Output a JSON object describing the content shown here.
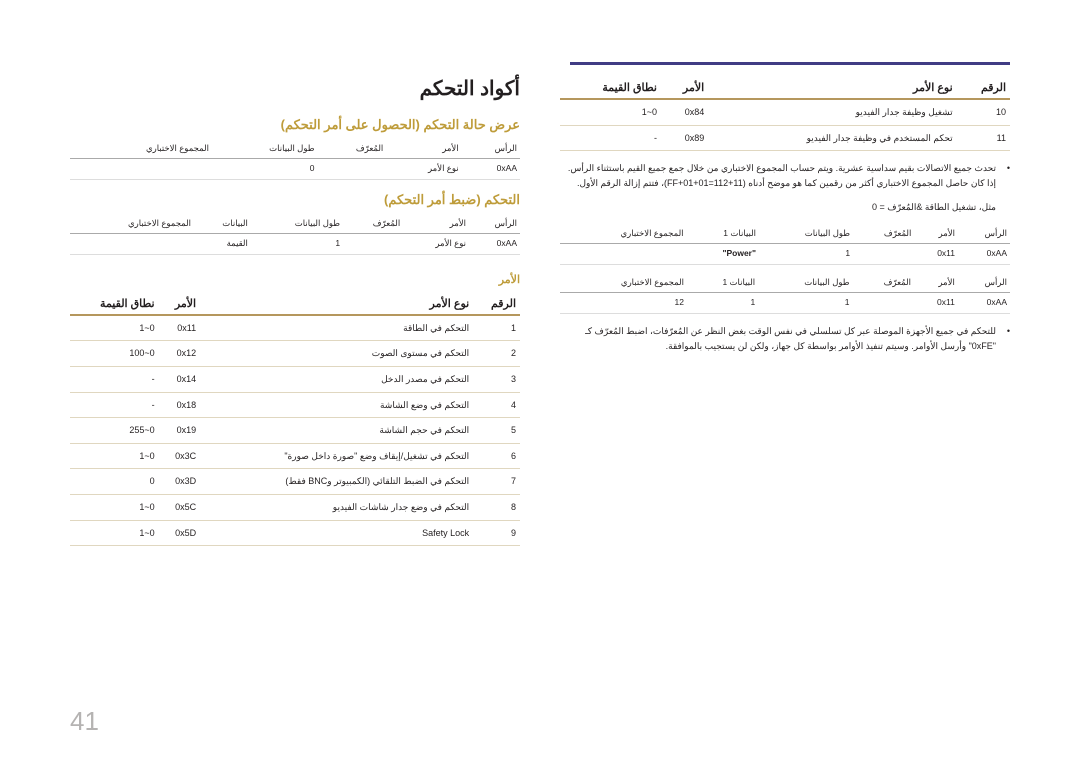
{
  "page_number": "41",
  "title": "أكواد التحكم",
  "h_viewstate": "عرض حالة التحكم (الحصول على أمر التحكم)",
  "viewstate_headers": [
    "الرأس",
    "الأمر",
    "المُعرّف",
    "طول البيانات",
    "المجموع الاختباري"
  ],
  "viewstate_row": [
    "0xAA",
    "نوع الأمر",
    "",
    "0",
    ""
  ],
  "h_setcontrol": "التحكم (ضبط أمر التحكم)",
  "setcontrol_headers": [
    "الرأس",
    "الأمر",
    "المُعرّف",
    "طول البيانات",
    "البيانات",
    "المجموع الاختباري"
  ],
  "setcontrol_row": [
    "0xAA",
    "نوع الأمر",
    "",
    "1",
    "القيمة",
    ""
  ],
  "h_command": "الأمر",
  "cmd_headers": [
    "الرقم",
    "نوع الأمر",
    "الأمر",
    "نطاق القيمة"
  ],
  "cmd_rows": [
    [
      "1",
      "التحكم في الطاقة",
      "0x11",
      "1~0"
    ],
    [
      "2",
      "التحكم في مستوى الصوت",
      "0x12",
      "100~0"
    ],
    [
      "3",
      "التحكم في مصدر الدخل",
      "0x14",
      "-"
    ],
    [
      "4",
      "التحكم في وضع الشاشة",
      "0x18",
      "-"
    ],
    [
      "5",
      "التحكم في حجم الشاشة",
      "0x19",
      "255~0"
    ],
    [
      "6",
      "التحكم في تشغيل/إيقاف وضع \"صورة داخل صورة\"",
      "0x3C",
      "1~0"
    ],
    [
      "7",
      "التحكم في الضبط التلقائي (الكمبيوتر وBNC فقط)",
      "0x3D",
      "0"
    ],
    [
      "8",
      "التحكم في وضع جدار شاشات الفيديو",
      "0x5C",
      "1~0"
    ],
    [
      "9",
      "Safety Lock",
      "0x5D",
      "1~0"
    ]
  ],
  "left_headers": [
    "الرقم",
    "نوع الأمر",
    "الأمر",
    "نطاق القيمة"
  ],
  "left_rows": [
    [
      "10",
      "تشغيل وظيفة جدار الفيديو",
      "0x84",
      "1~0"
    ],
    [
      "11",
      "تحكم المستخدم في وظيفة جدار الفيديو",
      "0x89",
      "-"
    ]
  ],
  "note1": "تحدث جميع الاتصالات بقيم سداسية عشرية. ويتم حساب المجموع الاختباري من خلال جمع جميع القيم باستثناء الرأس. إذا كان حاصل المجموع الاختباري أكثر من رقمين كما هو موضح أدناه (11+FF+01+01=112)، فتتم إزالة الرقم الأول.",
  "note1_ex": "مثل، تشغيل الطاقة &المُعرّف = 0",
  "ex1_headers": [
    "الرأس",
    "الأمر",
    "المُعرّف",
    "طول البيانات",
    "البيانات 1",
    "المجموع الاختباري"
  ],
  "ex1_row": [
    "0xAA",
    "0x11",
    "",
    "1",
    "\"Power\"",
    ""
  ],
  "ex2_row": [
    "0xAA",
    "0x11",
    "",
    "1",
    "1",
    "12"
  ],
  "note2": "للتحكم في جميع الأجهزة الموصلة عبر كل تسلسلي في نفس الوقت بغض النظر عن المُعرّفات، اضبط المُعرّف كـ \"0xFE\" وأرسل الأوامر. وسيتم تنفيذ الأوامر بواسطة كل جهاز، ولكن لن يستجيب بالموافقة."
}
